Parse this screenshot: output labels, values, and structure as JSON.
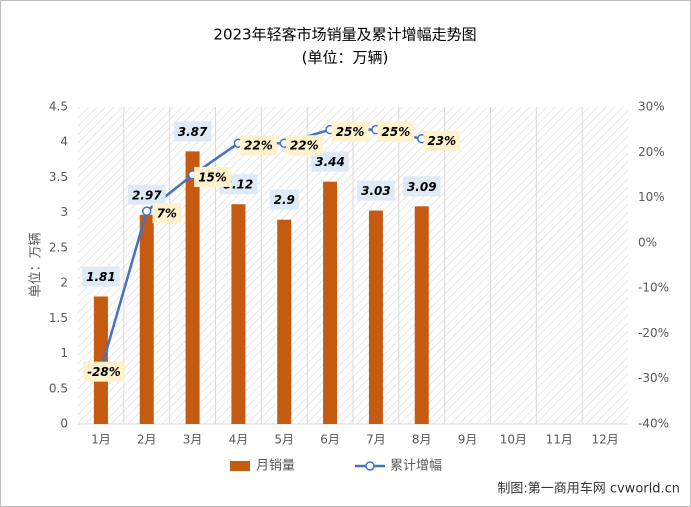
{
  "chart_data": {
    "type": "bar_line",
    "title": "2023年轻客市场销量及累计增幅走势图",
    "subtitle": "(单位：万辆)",
    "y_label": "单位：万辆",
    "source": "制图:第一商用车网 cvworld.cn",
    "categories": [
      "1月",
      "2月",
      "3月",
      "4月",
      "5月",
      "6月",
      "7月",
      "8月",
      "9月",
      "10月",
      "11月",
      "12月"
    ],
    "series": [
      {
        "name": "月销量",
        "color": "#c55a11",
        "type": "bar",
        "values": [
          1.81,
          2.97,
          3.87,
          3.12,
          2.9,
          3.44,
          3.03,
          3.09,
          null,
          null,
          null,
          null
        ]
      },
      {
        "name": "累计增幅",
        "color": "#4472c4",
        "type": "line",
        "axis": "y2",
        "values": [
          -28,
          7,
          15,
          22,
          22,
          25,
          25,
          23,
          null,
          null,
          null,
          null
        ],
        "value_labels": [
          "-28%",
          "7%",
          "15%",
          "22%",
          "22%",
          "25%",
          "25%",
          "23%",
          null,
          null,
          null,
          null
        ]
      }
    ],
    "ylim": [
      0,
      4.5
    ],
    "yticks": [
      0,
      0.5,
      1,
      1.5,
      2,
      2.5,
      3,
      3.5,
      4,
      4.5
    ],
    "y2lim": [
      -40,
      30
    ],
    "y2ticks": [
      {
        "value": -40,
        "label": "-40%"
      },
      {
        "value": -30,
        "label": "-30%"
      },
      {
        "value": -20,
        "label": "-20%"
      },
      {
        "value": -10,
        "label": "-10%"
      },
      {
        "value": 0,
        "label": "0%"
      },
      {
        "value": 10,
        "label": "10%"
      },
      {
        "value": 20,
        "label": "20%"
      },
      {
        "value": 30,
        "label": "30%"
      }
    ],
    "legend": "bottom"
  }
}
